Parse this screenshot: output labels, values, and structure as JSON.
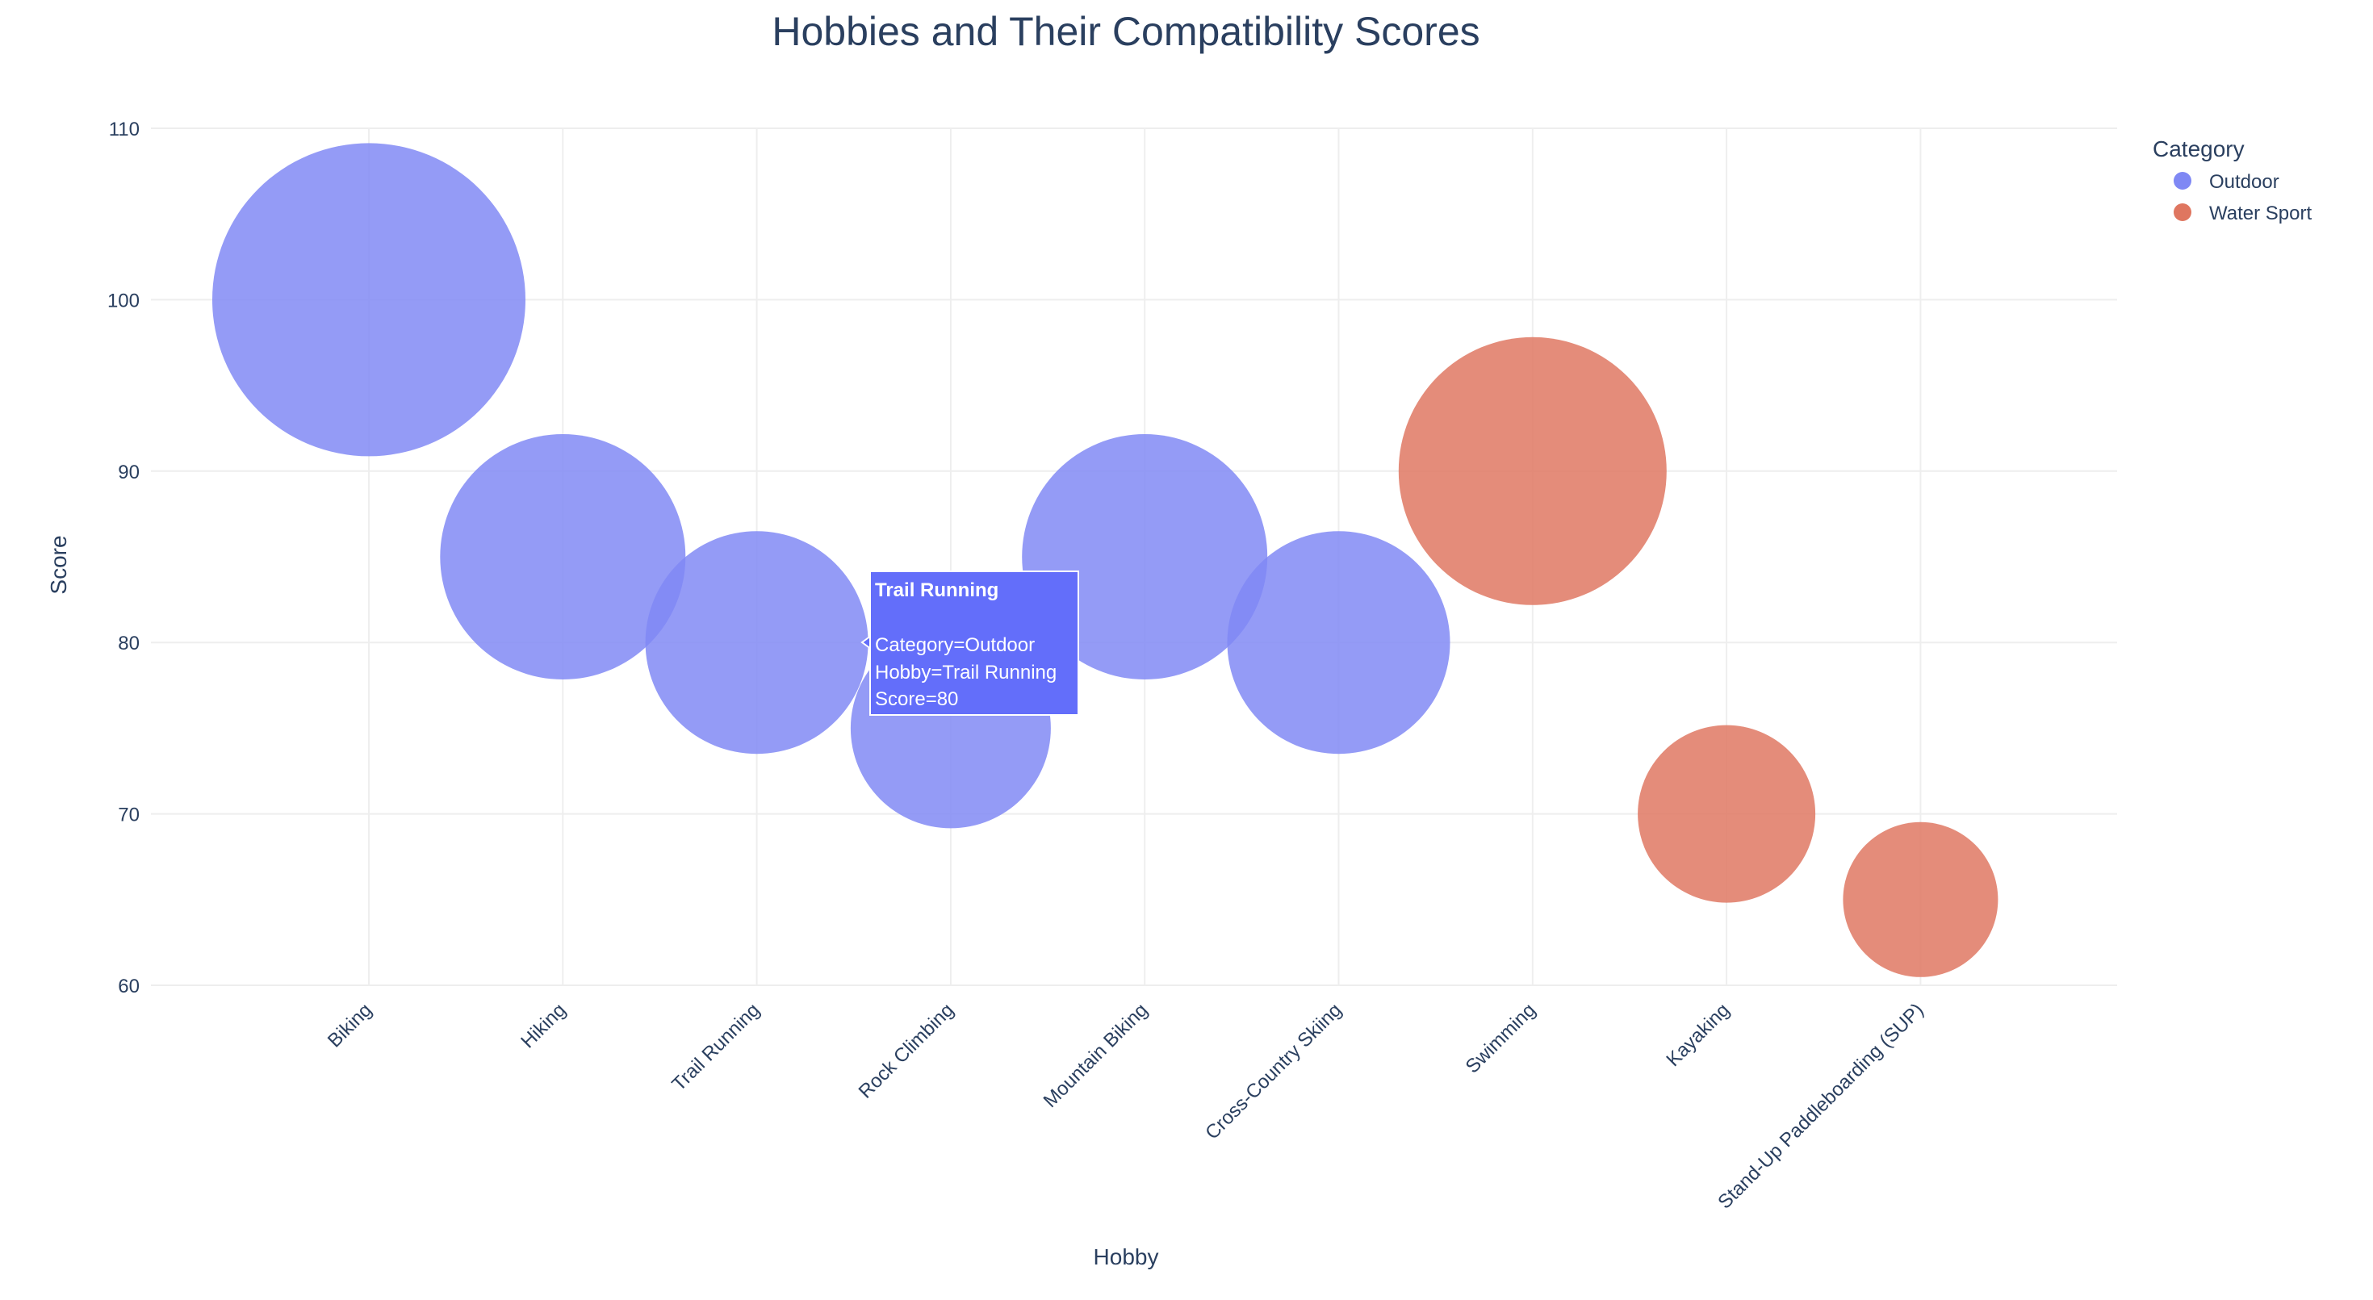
{
  "chart_data": {
    "type": "scatter",
    "title": "Hobbies and Their Compatibility Scores",
    "xlabel": "Hobby",
    "ylabel": "Score",
    "ylim": [
      60,
      110
    ],
    "yticks": [
      60,
      70,
      80,
      90,
      100,
      110
    ],
    "grid": true,
    "categories": [
      "Biking",
      "Hiking",
      "Trail Running",
      "Rock Climbing",
      "Mountain Biking",
      "Cross-Country Skiing",
      "Swimming",
      "Kayaking",
      "Stand-Up Paddleboarding (SUP)"
    ],
    "legend": {
      "title": "Category",
      "placement": "top-right"
    },
    "series": [
      {
        "name": "Outdoor",
        "color": "#7f88f4",
        "points": [
          {
            "hobby": "Biking",
            "score": 100
          },
          {
            "hobby": "Hiking",
            "score": 85
          },
          {
            "hobby": "Trail Running",
            "score": 80
          },
          {
            "hobby": "Rock Climbing",
            "score": 75
          },
          {
            "hobby": "Mountain Biking",
            "score": 85
          },
          {
            "hobby": "Cross-Country Skiing",
            "score": 80
          }
        ]
      },
      {
        "name": "Water Sport",
        "color": "#df7660",
        "points": [
          {
            "hobby": "Swimming",
            "score": 90
          },
          {
            "hobby": "Kayaking",
            "score": 70
          },
          {
            "hobby": "Stand-Up Paddleboarding (SUP)",
            "score": 65
          }
        ]
      }
    ],
    "tooltip": {
      "title": "Trail Running",
      "lines": [
        "Category=Outdoor",
        "Hobby=Trail Running",
        "Score=80"
      ]
    }
  }
}
